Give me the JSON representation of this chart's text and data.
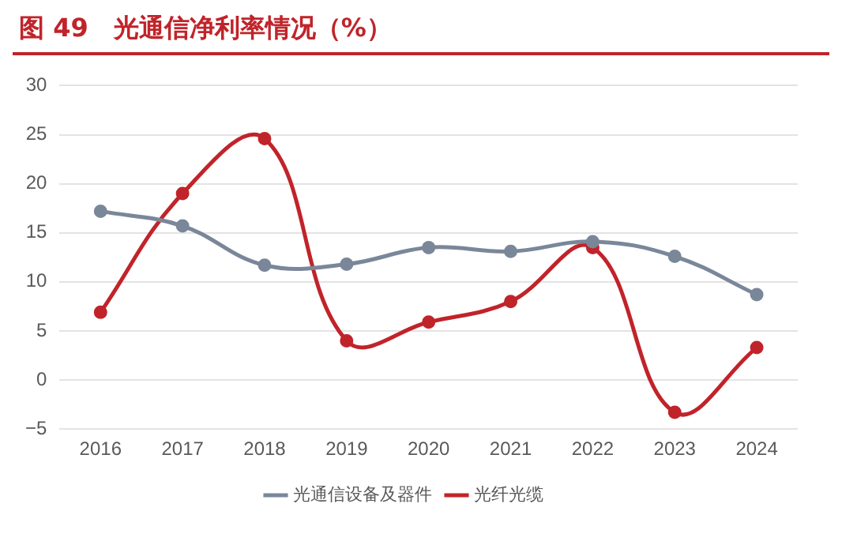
{
  "chart_data": {
    "type": "line",
    "title": "图 49　光通信净利率情况（%）",
    "categories": [
      "2016",
      "2017",
      "2018",
      "2019",
      "2020",
      "2021",
      "2022",
      "2023",
      "2024"
    ],
    "series": [
      {
        "name": "光通信设备及器件",
        "color": "#7a8799",
        "values": [
          17.2,
          15.7,
          11.7,
          11.8,
          13.5,
          13.1,
          14.1,
          12.6,
          8.7
        ]
      },
      {
        "name": "光纤光缆",
        "color": "#c0242a",
        "values": [
          6.9,
          19.0,
          24.6,
          4.0,
          5.9,
          8.0,
          13.5,
          -3.3,
          3.3
        ]
      }
    ],
    "ylim": [
      -5,
      30
    ],
    "yticks": [
      -5,
      0,
      5,
      10,
      15,
      20,
      25,
      30
    ],
    "grid": "y",
    "legend": "bottom",
    "marker": "circle",
    "line_style": "solid"
  }
}
